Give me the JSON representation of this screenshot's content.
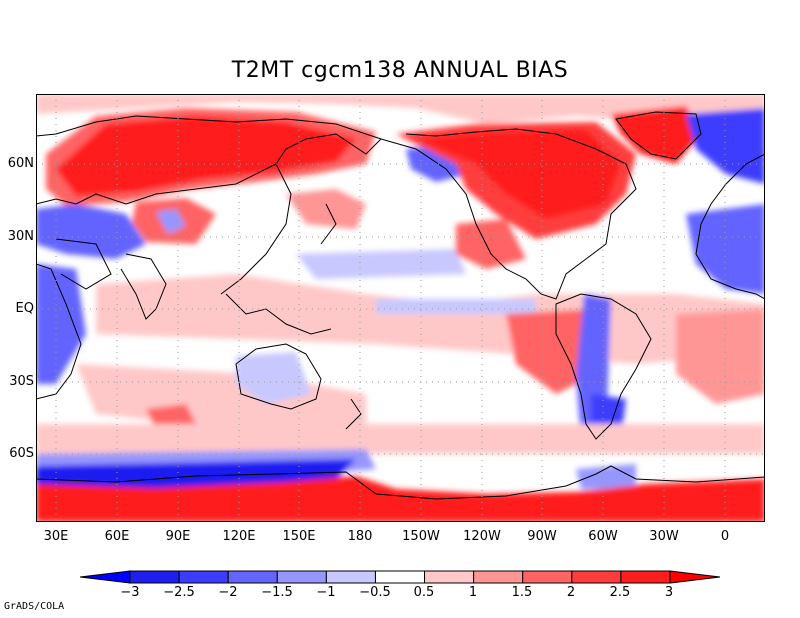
{
  "title": "T2MT cgcm138 ANNUAL  BIAS",
  "map": {
    "projection": "equirectangular",
    "lon_range": [
      15,
      375
    ],
    "lat_range": [
      -88,
      88
    ],
    "lat_ticks": [
      "60N",
      "30N",
      "EQ",
      "30S",
      "60S"
    ],
    "lon_ticks": [
      "30E",
      "60E",
      "90E",
      "120E",
      "150E",
      "180",
      "150W",
      "120W",
      "90W",
      "60W",
      "30W",
      "0"
    ],
    "grid": "dotted"
  },
  "colorbar": {
    "labels": [
      "−3",
      "−2.5",
      "−2",
      "−1.5",
      "−1",
      "−0.5",
      "0.5",
      "1",
      "1.5",
      "2",
      "2.5",
      "3"
    ],
    "colors": [
      "#1e1ef0",
      "#3c3cff",
      "#6464ff",
      "#9696ff",
      "#c8c8ff",
      "#ffffff",
      "#ffc8c8",
      "#ff9696",
      "#ff6464",
      "#ff3c3c",
      "#ff1e1e"
    ],
    "under_color": "#0000ff",
    "over_color": "#ff0000"
  },
  "credit": "GrADS/COLA"
}
